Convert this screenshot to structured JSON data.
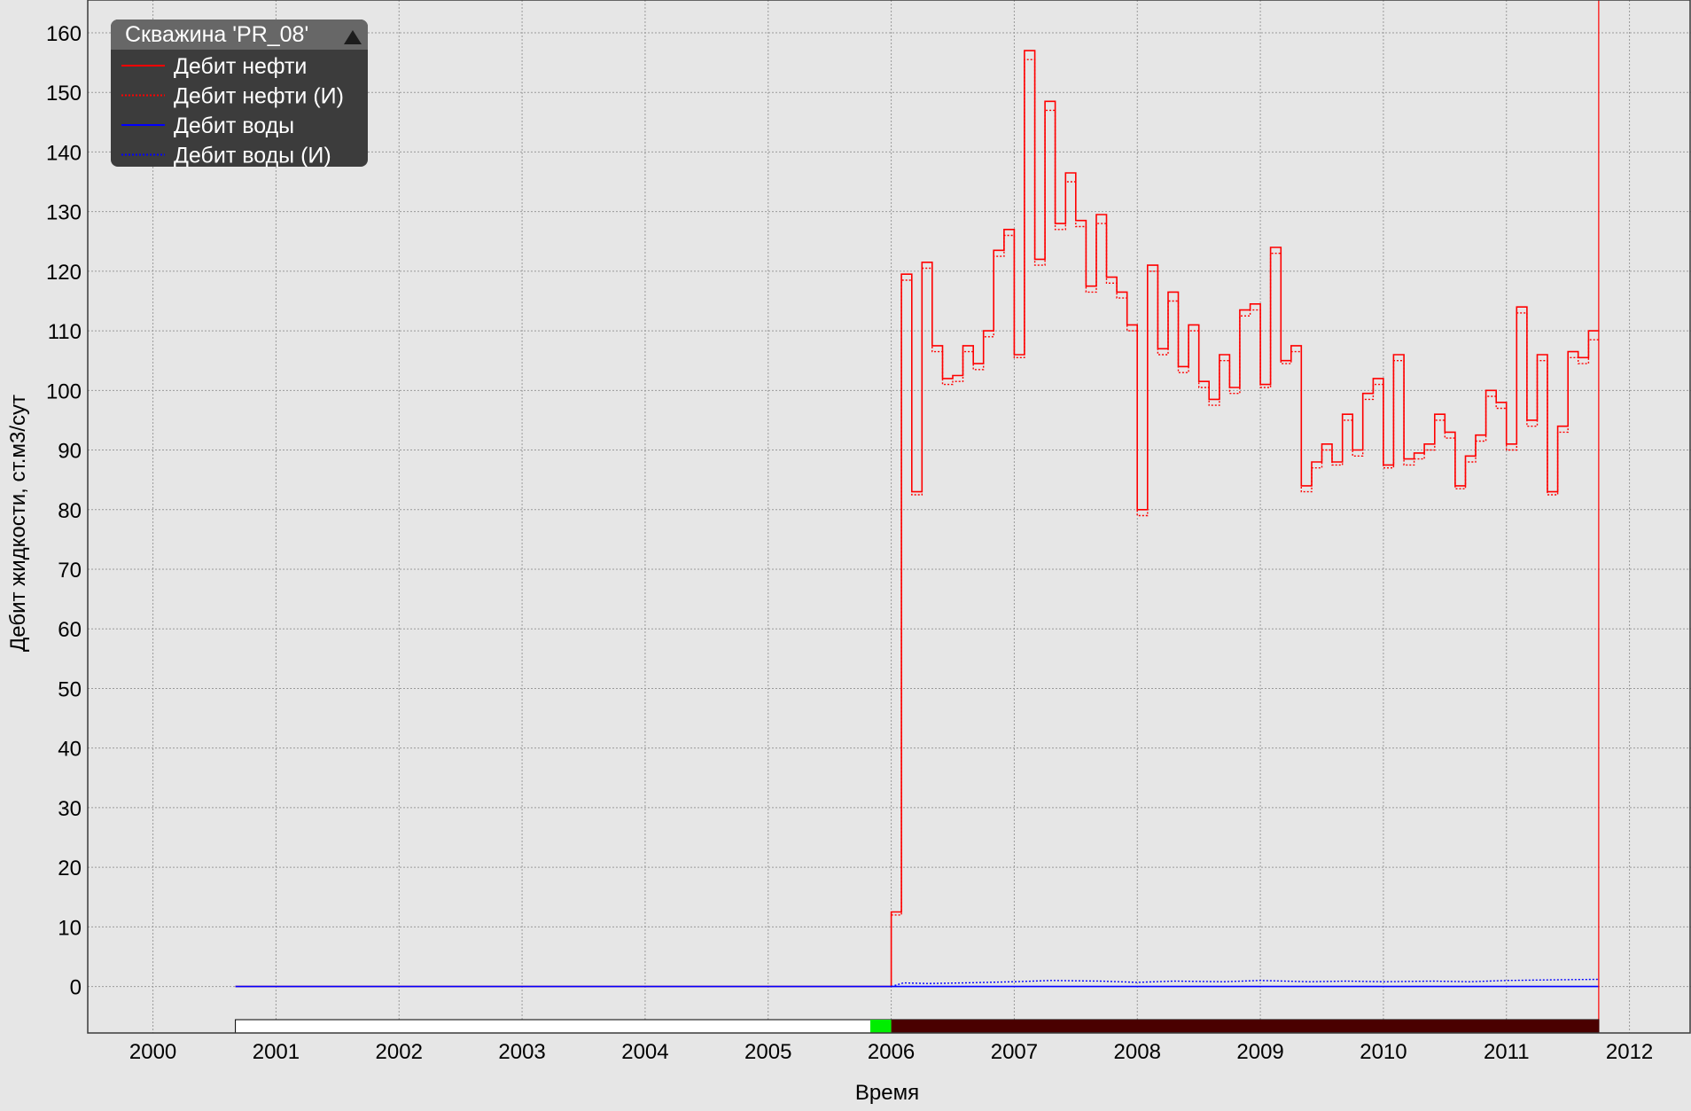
{
  "legend": {
    "title": "Скважина 'PR_08'",
    "collapse_icon": "triangle-up-icon",
    "items": [
      {
        "label": "Дебит нефти",
        "color": "#ff0000",
        "style": "solid"
      },
      {
        "label": "Дебит нефти (И)",
        "color": "#ff0000",
        "style": "dotted"
      },
      {
        "label": "Дебит воды",
        "color": "#0000ff",
        "style": "solid"
      },
      {
        "label": "Дебит воды (И)",
        "color": "#0000ff",
        "style": "dotted"
      }
    ]
  },
  "chart_data": {
    "type": "line",
    "xlabel": "Время",
    "ylabel": "Дебит жидкости, ст.м3/сут",
    "xlim": [
      1999.47,
      2012.5
    ],
    "ylim": [
      -7.8,
      165.5
    ],
    "x_ticks": [
      2000,
      2001,
      2002,
      2003,
      2004,
      2005,
      2006,
      2007,
      2008,
      2009,
      2010,
      2011,
      2012
    ],
    "y_ticks": [
      0,
      10,
      20,
      30,
      40,
      50,
      60,
      70,
      80,
      90,
      100,
      110,
      120,
      130,
      140,
      150,
      160
    ],
    "grid": true,
    "legend_position": "top-left",
    "current_date_marker": 2011.75,
    "colors": {
      "oil": "#ff0000",
      "water": "#0000ff",
      "history_start": "#00ee00",
      "history": "#4a0000",
      "marker": "#ff0000"
    },
    "timeline_bar": {
      "start": 2000.67,
      "history_start": 2005.83,
      "history_from": 2006.0,
      "end": 2011.75
    },
    "series": [
      {
        "name": "Дебит нефти",
        "color": "#ff0000",
        "style": "solid",
        "step": true,
        "x": [
          2000.67,
          2006.0,
          2006.083,
          2006.167,
          2006.25,
          2006.333,
          2006.417,
          2006.5,
          2006.583,
          2006.667,
          2006.75,
          2006.833,
          2006.917,
          2007.0,
          2007.083,
          2007.167,
          2007.25,
          2007.333,
          2007.417,
          2007.5,
          2007.583,
          2007.667,
          2007.75,
          2007.833,
          2007.917,
          2008.0,
          2008.083,
          2008.167,
          2008.25,
          2008.333,
          2008.417,
          2008.5,
          2008.583,
          2008.667,
          2008.75,
          2008.833,
          2008.917,
          2009.0,
          2009.083,
          2009.167,
          2009.25,
          2009.333,
          2009.417,
          2009.5,
          2009.583,
          2009.667,
          2009.75,
          2009.833,
          2009.917,
          2010.0,
          2010.083,
          2010.167,
          2010.25,
          2010.333,
          2010.417,
          2010.5,
          2010.583,
          2010.667,
          2010.75,
          2010.833,
          2010.917,
          2011.0,
          2011.083,
          2011.167,
          2011.25,
          2011.333,
          2011.417,
          2011.5,
          2011.583,
          2011.667,
          2011.75
        ],
        "y": [
          0,
          12.5,
          119.5,
          83,
          121.5,
          107.5,
          102,
          102.5,
          107.5,
          104.5,
          110,
          123.5,
          127,
          106,
          157,
          122,
          148.5,
          128,
          136.5,
          128.5,
          117.5,
          129.5,
          119,
          116.5,
          111,
          80,
          121,
          107,
          116.5,
          104,
          111,
          101.5,
          98.5,
          106,
          100.5,
          113.5,
          114.5,
          101,
          124,
          105,
          107.5,
          84,
          88,
          91,
          88,
          96,
          90,
          99.5,
          102,
          87.5,
          106,
          88.5,
          89.5,
          91,
          96,
          93,
          84,
          89,
          92.5,
          100,
          98,
          91,
          114,
          95,
          106,
          83,
          94,
          106.5,
          105.5,
          110,
          110
        ]
      },
      {
        "name": "Дебит нефти (И)",
        "color": "#ff0000",
        "style": "dotted",
        "step": true,
        "x": [
          2006.0,
          2006.083,
          2006.167,
          2006.25,
          2006.333,
          2006.417,
          2006.5,
          2006.583,
          2006.667,
          2006.75,
          2006.833,
          2006.917,
          2007.0,
          2007.083,
          2007.167,
          2007.25,
          2007.333,
          2007.417,
          2007.5,
          2007.583,
          2007.667,
          2007.75,
          2007.833,
          2007.917,
          2008.0,
          2008.083,
          2008.167,
          2008.25,
          2008.333,
          2008.417,
          2008.5,
          2008.583,
          2008.667,
          2008.75,
          2008.833,
          2008.917,
          2009.0,
          2009.083,
          2009.167,
          2009.25,
          2009.333,
          2009.417,
          2009.5,
          2009.583,
          2009.667,
          2009.75,
          2009.833,
          2009.917,
          2010.0,
          2010.083,
          2010.167,
          2010.25,
          2010.333,
          2010.417,
          2010.5,
          2010.583,
          2010.667,
          2010.75,
          2010.833,
          2010.917,
          2011.0,
          2011.083,
          2011.167,
          2011.25,
          2011.333,
          2011.417,
          2011.5,
          2011.583,
          2011.667,
          2011.75
        ],
        "y": [
          12,
          118.5,
          82.5,
          120.5,
          106.5,
          101,
          101.5,
          106.5,
          103.5,
          109,
          122.5,
          126,
          105.5,
          155.5,
          121,
          147,
          127,
          135,
          127.5,
          116.5,
          128,
          118,
          115.5,
          110,
          79,
          120,
          106,
          115,
          103,
          110,
          100.5,
          97.5,
          105,
          99.5,
          112.5,
          113.5,
          100.5,
          123,
          104.5,
          106.5,
          83,
          87,
          90,
          87.5,
          95,
          89,
          98.5,
          101,
          87,
          105,
          87.5,
          88.5,
          90,
          95,
          92,
          83.5,
          88,
          91.5,
          99,
          97,
          90,
          113,
          94,
          105,
          82.5,
          93,
          105.5,
          104.5,
          108.5,
          108.5
        ]
      },
      {
        "name": "Дебит воды",
        "color": "#0000ff",
        "style": "solid",
        "step": false,
        "x": [
          2000.67,
          2011.75
        ],
        "y": [
          0,
          0
        ]
      },
      {
        "name": "Дебит воды (И)",
        "color": "#0000ff",
        "style": "dotted",
        "step": false,
        "x": [
          2006.0,
          2006.1,
          2006.3,
          2006.6,
          2007.0,
          2007.3,
          2007.7,
          2008.0,
          2008.3,
          2008.7,
          2009.0,
          2009.4,
          2009.7,
          2010.0,
          2010.4,
          2010.7,
          2011.0,
          2011.3,
          2011.75
        ],
        "y": [
          0,
          0.6,
          0.5,
          0.6,
          0.8,
          1.0,
          0.9,
          0.7,
          0.9,
          0.8,
          1.0,
          0.8,
          0.9,
          0.8,
          0.9,
          0.8,
          1.0,
          1.1,
          1.2
        ]
      }
    ]
  }
}
